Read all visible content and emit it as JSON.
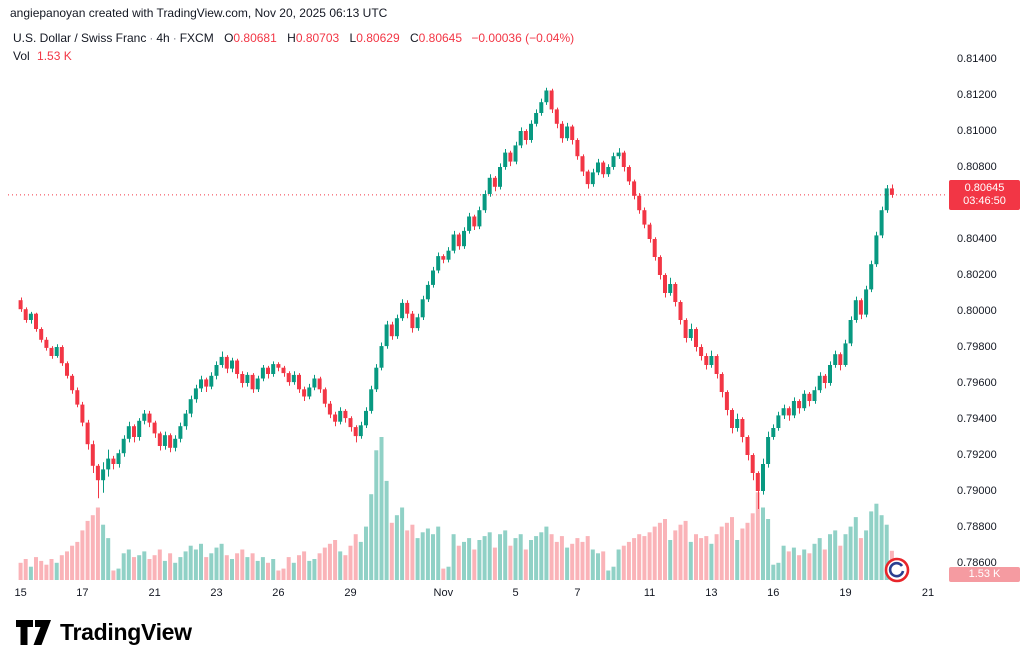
{
  "attribution": "angiepanoyan created with TradingView.com, Nov 20, 2025 06:13 UTC",
  "legend": {
    "title": "U.S. Dollar / Swiss Franc",
    "separator": "·",
    "interval": "4h",
    "source": "FXCM",
    "ohlc": [
      {
        "k": "O",
        "v": "0.80681"
      },
      {
        "k": "H",
        "v": "0.80703"
      },
      {
        "k": "L",
        "v": "0.80629"
      },
      {
        "k": "C",
        "v": "0.80645"
      }
    ],
    "change": "−0.00036 (−0.04%)",
    "volume_label": "Vol",
    "volume_value": "1.53 K"
  },
  "price_badge": {
    "price": "0.80645",
    "countdown": "03:46:50"
  },
  "volume_badge": "1.53 K",
  "logo_text": "TradingView",
  "colors": {
    "up": "#089981",
    "down": "#f23645",
    "vol_up": "rgba(8,153,129,0.45)",
    "vol_down": "rgba(242,54,69,0.38)",
    "last_price_line": "#f23645",
    "text": "#131722"
  },
  "price_scale_labels": [
    "0.81400",
    "0.81200",
    "0.81000",
    "0.80800",
    "0.80600",
    "0.80400",
    "0.80200",
    "0.80000",
    "0.79800",
    "0.79600",
    "0.79400",
    "0.79200",
    "0.79000",
    "0.78800",
    "0.78600"
  ],
  "chart_data": {
    "type": "candlestick",
    "symbol": "U.S. Dollar / Swiss Franc",
    "ticker_source": "FXCM",
    "timeframe": "4h",
    "title": "USDCHF 4h FXCM",
    "last_price": 0.80645,
    "change": "−0.00036 (−0.04%)",
    "current_volume_k": 1.53,
    "price_unit_divisor": 100000,
    "columns": [
      "open",
      "high",
      "low",
      "close",
      "volume_k"
    ],
    "y_axis": {
      "min": 0.786,
      "max": 0.814,
      "tick_step": 0.002
    },
    "x_labels": [
      {
        "t": "15",
        "i": 0
      },
      {
        "t": "17",
        "i": 12
      },
      {
        "t": "21",
        "i": 26
      },
      {
        "t": "23",
        "i": 38
      },
      {
        "t": "26",
        "i": 50
      },
      {
        "t": "29",
        "i": 64
      },
      {
        "t": "Nov",
        "i": 82
      },
      {
        "t": "5",
        "i": 96
      },
      {
        "t": "7",
        "i": 108
      },
      {
        "t": "11",
        "i": 122
      },
      {
        "t": "13",
        "i": 134
      },
      {
        "t": "16",
        "i": 146
      },
      {
        "t": "19",
        "i": 160
      },
      {
        "t": "21",
        "i": 176
      }
    ],
    "candles": [
      [
        80060,
        80075,
        79995,
        80010,
        0.9
      ],
      [
        80010,
        80020,
        79935,
        79950,
        1.1
      ],
      [
        79950,
        79995,
        79930,
        79985,
        0.7
      ],
      [
        79985,
        79990,
        79885,
        79900,
        1.2
      ],
      [
        79900,
        79910,
        79825,
        79840,
        1.0
      ],
      [
        79840,
        79855,
        79780,
        79795,
        0.8
      ],
      [
        79795,
        79805,
        79735,
        79750,
        1.1
      ],
      [
        79750,
        79815,
        79740,
        79800,
        0.9
      ],
      [
        79800,
        79810,
        79695,
        79710,
        1.3
      ],
      [
        79710,
        79720,
        79625,
        79640,
        1.5
      ],
      [
        79640,
        79650,
        79540,
        79560,
        1.8
      ],
      [
        79560,
        79575,
        79465,
        79480,
        2.0
      ],
      [
        79480,
        79495,
        79360,
        79380,
        2.6
      ],
      [
        79380,
        79395,
        79230,
        79260,
        3.1
      ],
      [
        79260,
        79280,
        79100,
        79140,
        3.4
      ],
      [
        79140,
        79150,
        78960,
        79060,
        3.8
      ],
      [
        79060,
        79160,
        78990,
        79120,
        2.9
      ],
      [
        79120,
        79230,
        79080,
        79180,
        2.2
      ],
      [
        79180,
        79195,
        79120,
        79150,
        0.5
      ],
      [
        79150,
        79230,
        79130,
        79210,
        0.6
      ],
      [
        79210,
        79310,
        79190,
        79290,
        1.4
      ],
      [
        79290,
        79385,
        79270,
        79360,
        1.6
      ],
      [
        79360,
        79370,
        79270,
        79300,
        1.2
      ],
      [
        79300,
        79405,
        79280,
        79390,
        1.3
      ],
      [
        79390,
        79450,
        79370,
        79430,
        1.5
      ],
      [
        79430,
        79445,
        79355,
        79380,
        1.1
      ],
      [
        79380,
        79390,
        79295,
        79320,
        1.3
      ],
      [
        79320,
        79330,
        79225,
        79250,
        1.6
      ],
      [
        79250,
        79330,
        79230,
        79310,
        1.0
      ],
      [
        79310,
        79320,
        79215,
        79240,
        1.4
      ],
      [
        79240,
        79310,
        79220,
        79290,
        0.9
      ],
      [
        79290,
        79380,
        79270,
        79360,
        1.2
      ],
      [
        79360,
        79450,
        79340,
        79430,
        1.5
      ],
      [
        79430,
        79530,
        79410,
        79510,
        1.8
      ],
      [
        79510,
        79590,
        79490,
        79570,
        1.6
      ],
      [
        79570,
        79640,
        79550,
        79620,
        1.9
      ],
      [
        79620,
        79630,
        79550,
        79580,
        1.2
      ],
      [
        79580,
        79660,
        79565,
        79640,
        1.4
      ],
      [
        79640,
        79720,
        79620,
        79700,
        1.7
      ],
      [
        79700,
        79775,
        79685,
        79745,
        1.9
      ],
      [
        79745,
        79755,
        79655,
        79680,
        1.3
      ],
      [
        79680,
        79740,
        79660,
        79725,
        1.1
      ],
      [
        79725,
        79735,
        79625,
        79650,
        1.4
      ],
      [
        79650,
        79665,
        79575,
        79600,
        1.6
      ],
      [
        79600,
        79660,
        79580,
        79645,
        1.2
      ],
      [
        79645,
        79655,
        79545,
        79565,
        1.4
      ],
      [
        79565,
        79640,
        79550,
        79625,
        1.0
      ],
      [
        79625,
        79700,
        79610,
        79685,
        1.2
      ],
      [
        79685,
        79695,
        79625,
        79650,
        0.9
      ],
      [
        79650,
        79720,
        79635,
        79705,
        1.1
      ],
      [
        79705,
        79715,
        79665,
        79685,
        0.5
      ],
      [
        79685,
        79695,
        79635,
        79655,
        0.6
      ],
      [
        79655,
        79665,
        79585,
        79605,
        1.2
      ],
      [
        79605,
        79665,
        79590,
        79645,
        0.9
      ],
      [
        79645,
        79655,
        79545,
        79565,
        1.3
      ],
      [
        79565,
        79580,
        79500,
        79525,
        1.5
      ],
      [
        79525,
        79595,
        79510,
        79575,
        1.0
      ],
      [
        79575,
        79645,
        79560,
        79625,
        1.1
      ],
      [
        79625,
        79635,
        79545,
        79565,
        1.4
      ],
      [
        79565,
        79575,
        79465,
        79485,
        1.7
      ],
      [
        79485,
        79500,
        79405,
        79425,
        1.9
      ],
      [
        79425,
        79440,
        79360,
        79385,
        2.1
      ],
      [
        79385,
        79465,
        79370,
        79445,
        1.5
      ],
      [
        79445,
        79455,
        79380,
        79405,
        1.3
      ],
      [
        79405,
        79415,
        79330,
        79355,
        1.8
      ],
      [
        79355,
        79365,
        79270,
        79305,
        2.4
      ],
      [
        79305,
        79385,
        79290,
        79365,
        2.0
      ],
      [
        79365,
        79465,
        79350,
        79445,
        2.8
      ],
      [
        79445,
        79585,
        79430,
        79565,
        4.5
      ],
      [
        79565,
        79705,
        79550,
        79685,
        6.8
      ],
      [
        79685,
        79825,
        79670,
        79805,
        7.5
      ],
      [
        79805,
        79945,
        79790,
        79925,
        5.2
      ],
      [
        79925,
        79940,
        79840,
        79860,
        3.0
      ],
      [
        79860,
        79980,
        79845,
        79960,
        3.4
      ],
      [
        79960,
        80065,
        79945,
        80045,
        3.8
      ],
      [
        80045,
        80060,
        79960,
        79985,
        2.6
      ],
      [
        79985,
        80000,
        79880,
        79905,
        2.9
      ],
      [
        79905,
        79985,
        79890,
        79965,
        2.2
      ],
      [
        79965,
        80085,
        79950,
        80065,
        2.5
      ],
      [
        80065,
        80165,
        80050,
        80145,
        2.7
      ],
      [
        80145,
        80245,
        80130,
        80225,
        2.4
      ],
      [
        80225,
        80325,
        80210,
        80305,
        2.8
      ],
      [
        80305,
        80315,
        80265,
        80285,
        0.6
      ],
      [
        80285,
        80355,
        80270,
        80335,
        0.7
      ],
      [
        80335,
        80445,
        80320,
        80425,
        2.4
      ],
      [
        80425,
        80435,
        80340,
        80360,
        1.8
      ],
      [
        80360,
        80465,
        80345,
        80445,
        2.0
      ],
      [
        80445,
        80545,
        80430,
        80525,
        2.2
      ],
      [
        80525,
        80535,
        80450,
        80470,
        1.6
      ],
      [
        80470,
        80580,
        80455,
        80560,
        2.1
      ],
      [
        80560,
        80670,
        80545,
        80650,
        2.3
      ],
      [
        80650,
        80760,
        80635,
        80740,
        2.5
      ],
      [
        80740,
        80750,
        80665,
        80690,
        1.7
      ],
      [
        80690,
        80820,
        80675,
        80800,
        2.4
      ],
      [
        80800,
        80900,
        80785,
        80880,
        2.6
      ],
      [
        80880,
        80890,
        80805,
        80830,
        1.8
      ],
      [
        80830,
        80940,
        80815,
        80920,
        2.2
      ],
      [
        80920,
        81020,
        80905,
        81000,
        2.4
      ],
      [
        81000,
        81010,
        80925,
        80950,
        1.6
      ],
      [
        80950,
        81060,
        80935,
        81040,
        2.1
      ],
      [
        81040,
        81120,
        81025,
        81100,
        2.3
      ],
      [
        81100,
        81180,
        81085,
        81160,
        2.5
      ],
      [
        81160,
        81240,
        81145,
        81225,
        2.8
      ],
      [
        81225,
        81235,
        81100,
        81120,
        2.4
      ],
      [
        81120,
        81130,
        81015,
        81040,
        2.0
      ],
      [
        81040,
        81055,
        80935,
        80960,
        2.3
      ],
      [
        80960,
        81045,
        80945,
        81025,
        1.7
      ],
      [
        81025,
        81035,
        80925,
        80950,
        1.9
      ],
      [
        80950,
        80960,
        80840,
        80860,
        2.2
      ],
      [
        80860,
        80870,
        80750,
        80775,
        2.0
      ],
      [
        80775,
        80785,
        80680,
        80705,
        2.3
      ],
      [
        80705,
        80790,
        80690,
        80770,
        1.6
      ],
      [
        80770,
        80845,
        80755,
        80825,
        1.4
      ],
      [
        80825,
        80835,
        80740,
        80760,
        1.5
      ],
      [
        80760,
        80815,
        80745,
        80800,
        0.5
      ],
      [
        80800,
        80880,
        80785,
        80860,
        0.7
      ],
      [
        80860,
        80905,
        80845,
        80880,
        1.6
      ],
      [
        80880,
        80890,
        80775,
        80800,
        1.8
      ],
      [
        80800,
        80810,
        80700,
        80720,
        2.0
      ],
      [
        80720,
        80730,
        80620,
        80640,
        2.2
      ],
      [
        80640,
        80655,
        80540,
        80560,
        2.4
      ],
      [
        80560,
        80575,
        80460,
        80480,
        2.3
      ],
      [
        80480,
        80490,
        80380,
        80400,
        2.5
      ],
      [
        80400,
        80410,
        80280,
        80300,
        2.8
      ],
      [
        80300,
        80310,
        80175,
        80200,
        3.0
      ],
      [
        80200,
        80210,
        80075,
        80100,
        3.2
      ],
      [
        80100,
        80185,
        80085,
        80150,
        2.1
      ],
      [
        80150,
        80160,
        80025,
        80050,
        2.6
      ],
      [
        80050,
        80060,
        79925,
        79950,
        2.9
      ],
      [
        79950,
        79960,
        79825,
        79850,
        3.1
      ],
      [
        79850,
        79930,
        79835,
        79900,
        2.0
      ],
      [
        79900,
        79910,
        79775,
        79800,
        2.4
      ],
      [
        79800,
        79815,
        79725,
        79750,
        2.2
      ],
      [
        79750,
        79765,
        79675,
        79700,
        2.3
      ],
      [
        79700,
        79780,
        79685,
        79750,
        1.9
      ],
      [
        79750,
        79760,
        79625,
        79650,
        2.4
      ],
      [
        79650,
        79660,
        79520,
        79550,
        2.8
      ],
      [
        79550,
        79560,
        79420,
        79450,
        3.0
      ],
      [
        79450,
        79460,
        79320,
        79350,
        3.3
      ],
      [
        79350,
        79430,
        79330,
        79400,
        2.1
      ],
      [
        79400,
        79410,
        79270,
        79300,
        2.7
      ],
      [
        79300,
        79310,
        79170,
        79200,
        3.0
      ],
      [
        79200,
        79210,
        79060,
        79100,
        3.5
      ],
      [
        79100,
        79110,
        78900,
        79000,
        4.6
      ],
      [
        79000,
        79180,
        78980,
        79150,
        3.8
      ],
      [
        79150,
        79330,
        79130,
        79300,
        3.2
      ],
      [
        79300,
        79370,
        79285,
        79350,
        0.8
      ],
      [
        79350,
        79440,
        79335,
        79420,
        0.9
      ],
      [
        79420,
        79480,
        79400,
        79460,
        1.8
      ],
      [
        79460,
        79470,
        79390,
        79420,
        1.5
      ],
      [
        79420,
        79520,
        79405,
        79500,
        1.7
      ],
      [
        79500,
        79510,
        79430,
        79460,
        1.3
      ],
      [
        79460,
        79560,
        79445,
        79540,
        1.6
      ],
      [
        79540,
        79550,
        79470,
        79500,
        1.4
      ],
      [
        79500,
        79580,
        79485,
        79560,
        1.9
      ],
      [
        79560,
        79660,
        79545,
        79640,
        2.2
      ],
      [
        79640,
        79650,
        79570,
        79600,
        1.6
      ],
      [
        79600,
        79720,
        79585,
        79700,
        2.4
      ],
      [
        79700,
        79780,
        79685,
        79760,
        2.6
      ],
      [
        79760,
        79770,
        79670,
        79700,
        1.8
      ],
      [
        79700,
        79840,
        79690,
        79820,
        2.4
      ],
      [
        79820,
        79970,
        79805,
        79950,
        2.8
      ],
      [
        79950,
        80080,
        79935,
        80060,
        3.3
      ],
      [
        80060,
        80070,
        79955,
        79980,
        2.2
      ],
      [
        79980,
        80140,
        79965,
        80120,
        2.6
      ],
      [
        80120,
        80280,
        80105,
        80260,
        3.6
      ],
      [
        80260,
        80440,
        80245,
        80420,
        4.0
      ],
      [
        80420,
        80580,
        80405,
        80560,
        3.4
      ],
      [
        80560,
        80700,
        80545,
        80681,
        2.9
      ],
      [
        80681,
        80703,
        80629,
        80645,
        1.53
      ]
    ]
  }
}
